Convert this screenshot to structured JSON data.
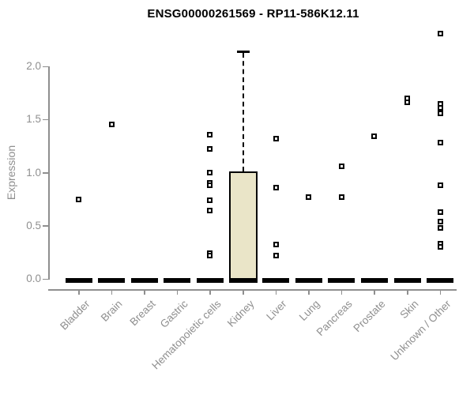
{
  "chart_data": {
    "type": "boxplot",
    "title": "ENSG00000261569 - RP11-586K12.11",
    "ylabel": "Expression",
    "ylim": [
      0,
      2.31
    ],
    "yticks": [
      "0.0",
      "0.5",
      "1.0",
      "1.5",
      "2.0"
    ],
    "grid": false,
    "legend": "none",
    "categories": [
      "Bladder",
      "Brain",
      "Breast",
      "Gastric",
      "Hematopoietic cells",
      "Kidney",
      "Liver",
      "Lung",
      "Pancreas",
      "Prostate",
      "Skin",
      "Unknown / Other"
    ],
    "series": [
      {
        "category": "Bladder",
        "q1": 0,
        "median": 0,
        "q3": 0,
        "whisker_high": 0,
        "outliers": [
          0.75
        ]
      },
      {
        "category": "Brain",
        "q1": 0,
        "median": 0,
        "q3": 0,
        "whisker_high": 0,
        "outliers": [
          1.45
        ]
      },
      {
        "category": "Breast",
        "q1": 0,
        "median": 0,
        "q3": 0,
        "whisker_high": 0,
        "outliers": []
      },
      {
        "category": "Gastric",
        "q1": 0,
        "median": 0,
        "q3": 0,
        "whisker_high": 0,
        "outliers": []
      },
      {
        "category": "Hematopoietic cells",
        "q1": 0,
        "median": 0,
        "q3": 0,
        "whisker_high": 0,
        "outliers": [
          1.36,
          1.22,
          1.0,
          0.9,
          0.88,
          0.74,
          0.64,
          0.24,
          0.22
        ]
      },
      {
        "category": "Kidney",
        "q1": 0,
        "median": 0,
        "q3": 1.01,
        "whisker_high": 2.14,
        "outliers": []
      },
      {
        "category": "Liver",
        "q1": 0,
        "median": 0,
        "q3": 0,
        "whisker_high": 0,
        "outliers": [
          1.32,
          0.86,
          0.32,
          0.22
        ]
      },
      {
        "category": "Lung",
        "q1": 0,
        "median": 0,
        "q3": 0,
        "whisker_high": 0,
        "outliers": [
          0.77
        ]
      },
      {
        "category": "Pancreas",
        "q1": 0,
        "median": 0,
        "q3": 0,
        "whisker_high": 0,
        "outliers": [
          1.06,
          0.77
        ]
      },
      {
        "category": "Prostate",
        "q1": 0,
        "median": 0,
        "q3": 0,
        "whisker_high": 0,
        "outliers": [
          1.34
        ]
      },
      {
        "category": "Skin",
        "q1": 0,
        "median": 0,
        "q3": 0,
        "whisker_high": 0,
        "outliers": [
          1.7,
          1.66
        ]
      },
      {
        "category": "Unknown / Other",
        "q1": 0,
        "median": 0,
        "q3": 0,
        "whisker_high": 0,
        "outliers": [
          2.31,
          1.65,
          1.61,
          1.56,
          1.28,
          0.88,
          0.63,
          0.54,
          0.48,
          0.33,
          0.3
        ]
      }
    ],
    "colors": {
      "box_fill": "#eae5c8",
      "box_border": "#000000",
      "median": "#000000",
      "axis": "#8f8f8f",
      "tick_label": "#8f8f8f",
      "title": "#000000",
      "outlier_border": "#000000",
      "outlier_fill": "#ffffff"
    }
  }
}
